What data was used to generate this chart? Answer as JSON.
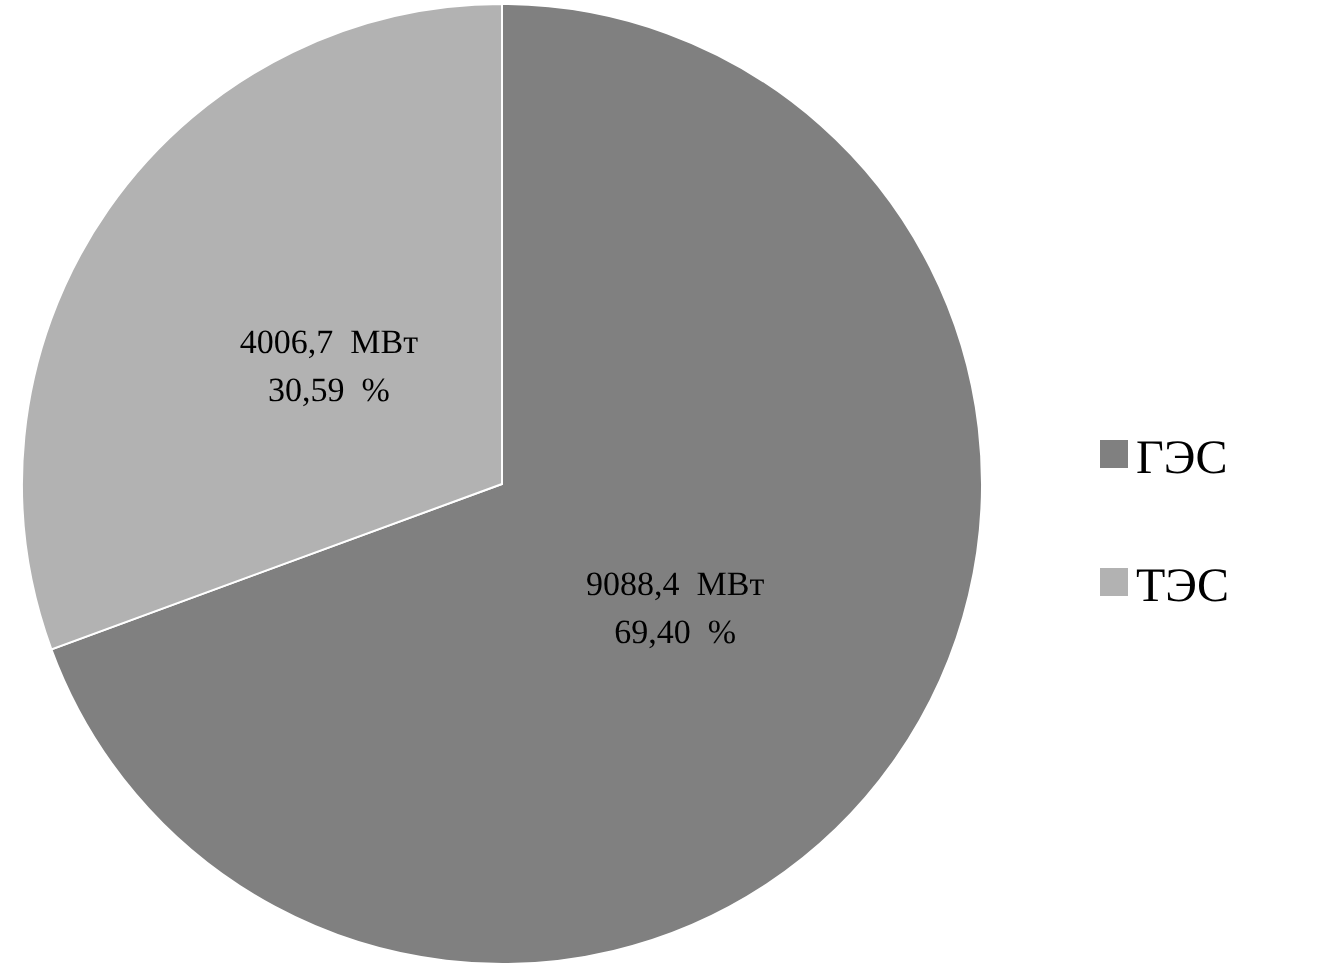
{
  "chart_data": {
    "type": "pie",
    "categories": [
      "ГЭС",
      "ТЭС"
    ],
    "values": [
      9088.4,
      4006.7
    ],
    "colors": [
      "#808080",
      "#b2b2b2"
    ],
    "value_labels": [
      "9088,4  МВт\n69,40  %",
      "4006,7  МВт\n30,59  %"
    ],
    "legend": "right"
  }
}
